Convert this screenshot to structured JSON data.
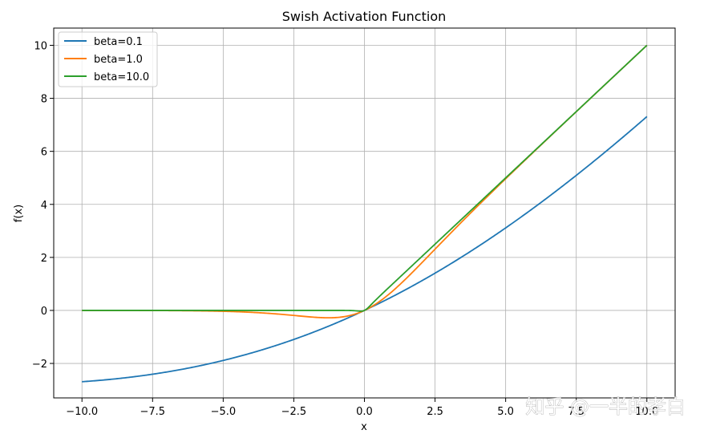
{
  "chart_data": {
    "type": "line",
    "title": "Swish Activation Function",
    "xlabel": "x",
    "ylabel": "f(x)",
    "xlim": [
      -11.0,
      11.0
    ],
    "ylim": [
      -3.3,
      10.65
    ],
    "xticks": [
      -10.0,
      -7.5,
      -5.0,
      -2.5,
      0.0,
      2.5,
      5.0,
      7.5,
      10.0
    ],
    "xtick_labels": [
      "−10.0",
      "−7.5",
      "−5.0",
      "−2.5",
      "0.0",
      "2.5",
      "5.0",
      "7.5",
      "10.0"
    ],
    "yticks": [
      -2,
      0,
      2,
      4,
      6,
      8,
      10
    ],
    "ytick_labels": [
      "−2",
      "0",
      "2",
      "4",
      "6",
      "8",
      "10"
    ],
    "grid": true,
    "legend_position": "top-left",
    "function": "x * sigmoid(beta * x)",
    "x_range": [
      -10,
      10
    ],
    "series": [
      {
        "name": "beta=0.1",
        "beta": 0.1,
        "color": "#1f77b4"
      },
      {
        "name": "beta=1.0",
        "beta": 1.0,
        "color": "#ff7f0e"
      },
      {
        "name": "beta=10.0",
        "beta": 10.0,
        "color": "#2ca02c"
      }
    ]
  },
  "watermark": "知乎 @一半的孝白"
}
